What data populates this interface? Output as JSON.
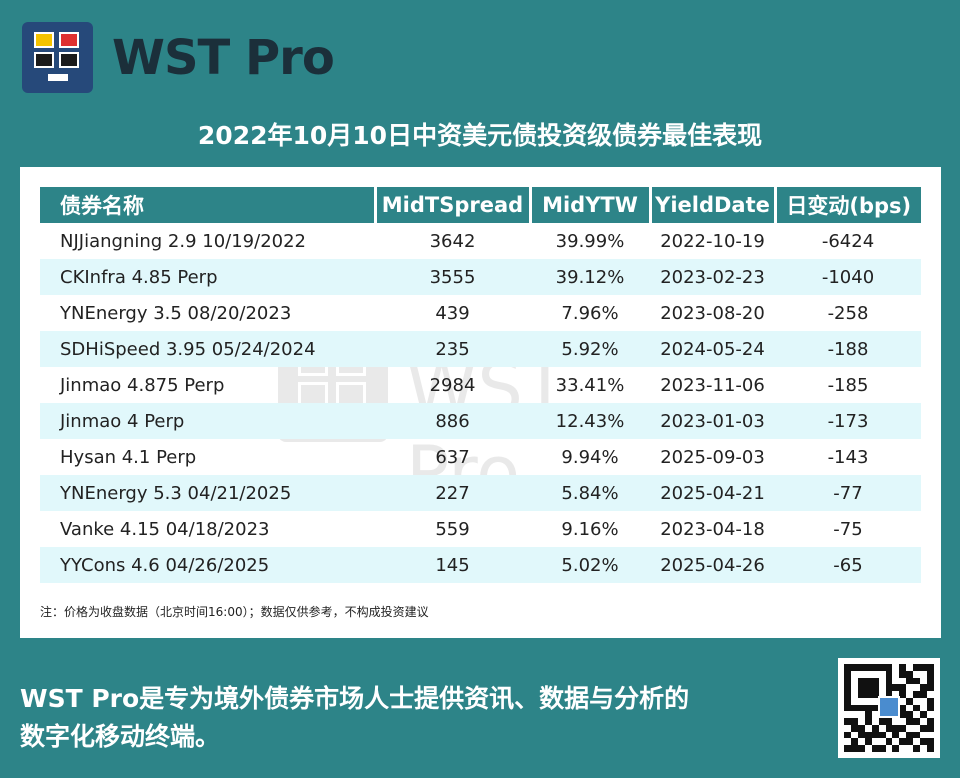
{
  "brand": {
    "name": "WST Pro"
  },
  "title": "2022年10月10日中资美元债投资级债券最佳表现",
  "table": {
    "headers": [
      "债券名称",
      "MidTSpread",
      "MidYTW",
      "YieldDate",
      "日变动(bps)"
    ],
    "rows": [
      [
        "NJJiangning 2.9 10/19/2022",
        "3642",
        "39.99%",
        "2022-10-19",
        "-6424"
      ],
      [
        "CKInfra 4.85 Perp",
        "3555",
        "39.12%",
        "2023-02-23",
        "-1040"
      ],
      [
        "YNEnergy 3.5 08/20/2023",
        "439",
        "7.96%",
        "2023-08-20",
        "-258"
      ],
      [
        "SDHiSpeed 3.95 05/24/2024",
        "235",
        "5.92%",
        "2024-05-24",
        "-188"
      ],
      [
        "Jinmao 4.875 Perp",
        "2984",
        "33.41%",
        "2023-11-06",
        "-185"
      ],
      [
        "Jinmao 4 Perp",
        "886",
        "12.43%",
        "2023-01-03",
        "-173"
      ],
      [
        "Hysan 4.1 Perp",
        "637",
        "9.94%",
        "2025-09-03",
        "-143"
      ],
      [
        "YNEnergy 5.3 04/21/2025",
        "227",
        "5.84%",
        "2025-04-21",
        "-77"
      ],
      [
        "Vanke 4.15 04/18/2023",
        "559",
        "9.16%",
        "2023-04-18",
        "-75"
      ],
      [
        "YYCons 4.6 04/26/2025",
        "145",
        "5.02%",
        "2025-04-26",
        "-65"
      ]
    ]
  },
  "note": "注：价格为收盘数据（北京时间16:00）；数据仅供参考，不构成投资建议",
  "watermark": "WST Pro",
  "footer": {
    "line1": "WST Pro是专为境外债券市场人士提供资讯、数据与分析的",
    "line2": "数字化移动终端。"
  },
  "colors": {
    "background": "#2d8488",
    "header_bg": "#2d8488",
    "row_alt": "#e1f8fb",
    "logo_bg": "#26497a"
  },
  "icons": [
    "wst-logo-icon",
    "qr-code-icon"
  ]
}
